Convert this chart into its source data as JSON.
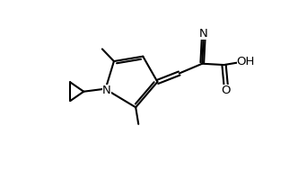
{
  "bg_color": "#ffffff",
  "line_color": "#000000",
  "line_width": 1.5,
  "font_size": 9.5,
  "xlim": [
    -1.5,
    9.5
  ],
  "ylim": [
    -1.5,
    5.5
  ]
}
